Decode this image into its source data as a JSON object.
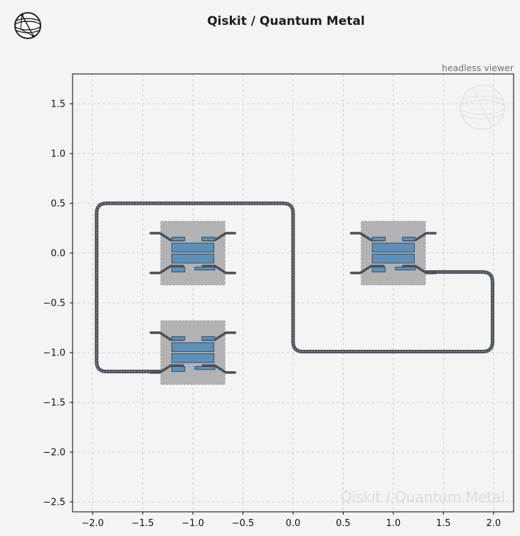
{
  "header": {
    "title": "Qiskit / Quantum Metal",
    "subtitle": "headless viewer",
    "logo_icon": "globe-icon"
  },
  "watermark": {
    "text": "Qiskit / Quantum Metal",
    "icon": "globe-icon"
  },
  "colors": {
    "background": "#f4f4f4",
    "grid": "#cfcfcf",
    "pocket": "#b3b3b3",
    "pad": "#5d8fb8",
    "route": "#484f57"
  },
  "chart_data": {
    "type": "layout",
    "xlim": [
      -2.2,
      2.2
    ],
    "ylim": [
      -2.6,
      1.8
    ],
    "xticks": [
      -2.0,
      -1.5,
      -1.0,
      -0.5,
      0.0,
      0.5,
      1.0,
      1.5,
      2.0
    ],
    "yticks": [
      1.5,
      1.0,
      0.5,
      0.0,
      -0.5,
      -1.0,
      -1.5,
      -2.0,
      -2.5
    ],
    "xtick_labels": [
      "−2.0",
      "−1.5",
      "−1.0",
      "−0.5",
      "0.0",
      "0.5",
      "1.0",
      "1.5",
      "2.0"
    ],
    "ytick_labels": [
      "1.5",
      "1.0",
      "0.5",
      "0.0",
      "−0.5",
      "−1.0",
      "−1.5",
      "−2.0",
      "−2.5"
    ],
    "grid": true,
    "qubits": [
      {
        "cx": -1.0,
        "cy": 0.0
      },
      {
        "cx": 1.0,
        "cy": 0.0
      },
      {
        "cx": -1.0,
        "cy": -1.0
      }
    ],
    "routes": [
      [
        [
          -0.7,
          -0.2
        ],
        [
          -0.7,
          -0.2
        ]
      ],
      [
        [
          -1.2,
          -1.19
        ],
        [
          -1.96,
          -1.19
        ],
        [
          -1.96,
          0.5
        ],
        [
          0.0,
          0.5
        ],
        [
          0.0,
          -0.99
        ],
        [
          1.99,
          -0.99
        ],
        [
          1.99,
          -0.19
        ],
        [
          1.3,
          -0.19
        ]
      ]
    ]
  }
}
